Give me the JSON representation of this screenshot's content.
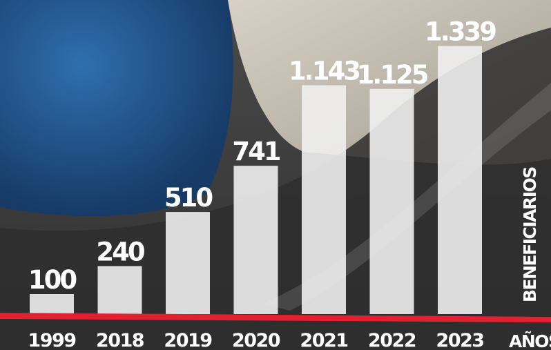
{
  "chart_data": {
    "type": "bar",
    "x_label": "AÑOS",
    "y_label": "BENEFICIARIOS",
    "categories": [
      "1999",
      "2018",
      "2019",
      "2020",
      "2021",
      "2022",
      "2023"
    ],
    "values": [
      100,
      240,
      510,
      741,
      1143,
      1125,
      1339
    ],
    "value_labels": [
      "100",
      "240",
      "510",
      "741",
      "1.143",
      "1.125",
      "1.339"
    ],
    "color": "#f0f0f0"
  }
}
